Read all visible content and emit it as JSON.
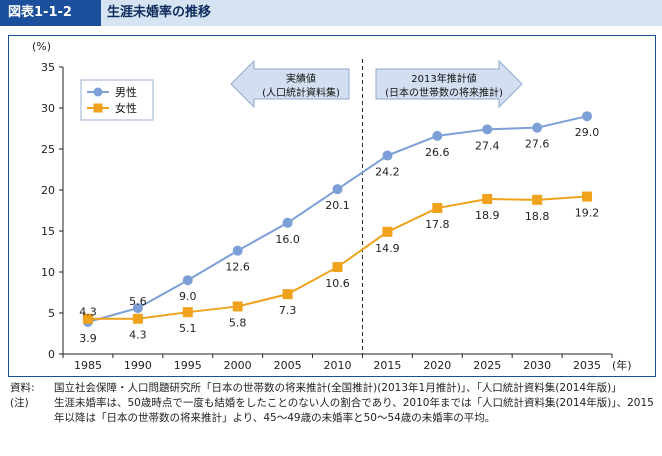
{
  "header": {
    "figure_label": "図表1-1-2",
    "title": "生涯未婚率の推移"
  },
  "chart_data": {
    "type": "line",
    "ylabel": "(%)",
    "xlabel": "(年)",
    "ylim": [
      0,
      35
    ],
    "yticks": [
      0,
      5,
      10,
      15,
      20,
      25,
      30,
      35
    ],
    "x": [
      1985,
      1990,
      1995,
      2000,
      2005,
      2010,
      2015,
      2020,
      2025,
      2030,
      2035
    ],
    "x_labels": [
      "1985",
      "1990",
      "1995",
      "2000",
      "2005",
      "2010",
      "2015",
      "2020",
      "2025",
      "2030",
      "2035"
    ],
    "series": [
      {
        "name": "男性",
        "color": "#7b9fd6",
        "marker": "circle",
        "values": [
          3.9,
          5.6,
          9.0,
          12.6,
          16.0,
          20.1,
          24.2,
          26.6,
          27.4,
          27.6,
          29.0
        ],
        "labels": [
          "3.9",
          "5.6",
          "9.0",
          "12.6",
          "16.0",
          "20.1",
          "24.2",
          "26.6",
          "27.4",
          "27.6",
          "29.0"
        ]
      },
      {
        "name": "女性",
        "color": "#f0a21c",
        "marker": "square",
        "values": [
          4.3,
          4.3,
          5.1,
          5.8,
          7.3,
          10.6,
          14.9,
          17.8,
          18.9,
          18.8,
          19.2
        ],
        "labels": [
          "4.3",
          "4.3",
          "5.1",
          "5.8",
          "7.3",
          "10.6",
          "14.9",
          "17.8",
          "18.9",
          "18.8",
          "19.2"
        ]
      }
    ],
    "legend_position": "top-left",
    "grid": false,
    "annotations": {
      "actual_line1": "実績値",
      "actual_line2": "(人口統計資料集)",
      "projection_line1": "2013年推計値",
      "projection_line2": "(日本の世帯数の将来推計)",
      "divider_between": [
        2010,
        2015
      ]
    }
  },
  "notes": {
    "source_label": "資料:",
    "source_text": "国立社会保障・人口問題研究所「日本の世帯数の将来推計(全国推計)(2013年1月推計)」、「人口統計資料集(2014年版)」",
    "note_label": "(注)",
    "note_text": "生涯未婚率は、50歳時点で一度も結婚をしたことのない人の割合であり、2010年までは「人口統計資料集(2014年版)」、2015年以降は「日本の世帯数の将来推計」より、45～49歳の未婚率と50～54歳の未婚率の平均。"
  }
}
